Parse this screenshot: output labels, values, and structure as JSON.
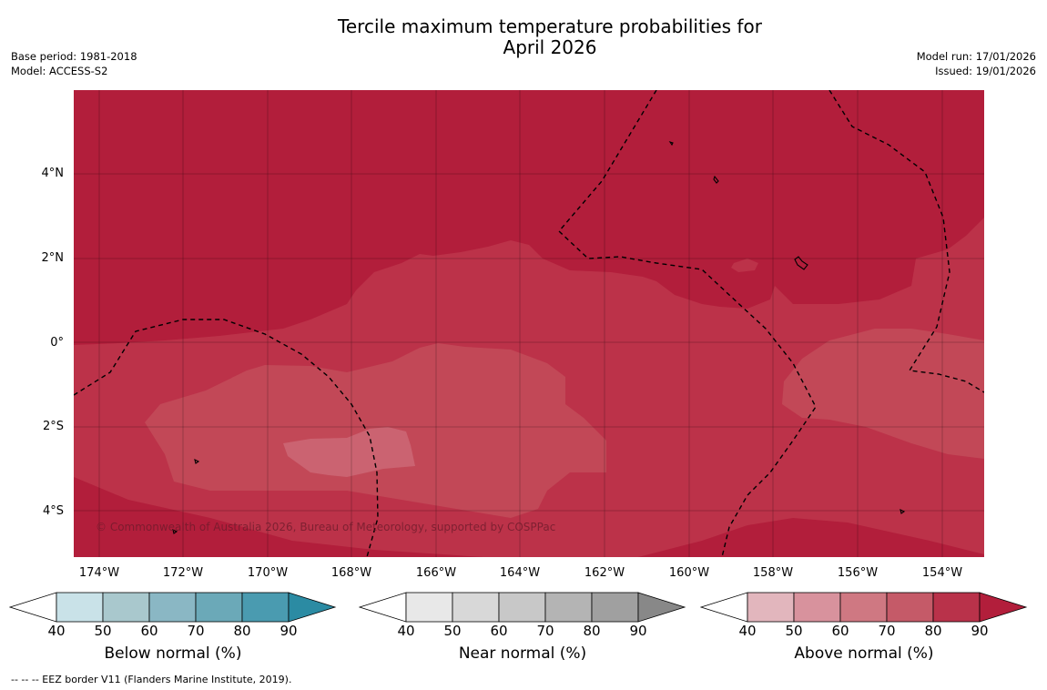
{
  "title_line1": "Tercile maximum temperature probabilities for",
  "title_line2": "April 2026",
  "base_period": "Base period: 1981-2018",
  "model": "Model: ACCESS-S2",
  "model_run": "Model run: 17/01/2026",
  "issued": "Issued: 19/01/2026",
  "map": {
    "lat_labels": [
      "4°N",
      "2°N",
      "0°",
      "2°S",
      "4°S"
    ],
    "lon_labels": [
      "174°W",
      "172°W",
      "170°W",
      "168°W",
      "166°W",
      "164°W",
      "162°W",
      "160°W",
      "158°W",
      "156°W",
      "154°W"
    ],
    "copyright": "© Commonwealth of Australia 2026, Bureau of Meteorology, supported by COSPPac",
    "region_colors": {
      "above_80_90": "#b21e3b",
      "above_70_80": "#bc3249",
      "above_60_70": "#c24857",
      "above_50_60": "#cb6371"
    }
  },
  "legends": [
    {
      "title": "Below normal (%)",
      "ticks": [
        "40",
        "50",
        "60",
        "70",
        "80",
        "90"
      ],
      "colors": [
        "#c9e2e8",
        "#a9c8cd",
        "#8ab7c4",
        "#6ba9b8",
        "#4a9bb0",
        "#2b8ba3"
      ]
    },
    {
      "title": "Near normal (%)",
      "ticks": [
        "40",
        "50",
        "60",
        "70",
        "80",
        "90"
      ],
      "colors": [
        "#e8e8e8",
        "#d8d8d8",
        "#c8c8c8",
        "#b4b4b4",
        "#a0a0a0",
        "#888888"
      ]
    },
    {
      "title": "Above normal (%)",
      "ticks": [
        "40",
        "50",
        "60",
        "70",
        "80",
        "90"
      ],
      "colors": [
        "#e2b6bd",
        "#d8929d",
        "#cf7882",
        "#c55a68",
        "#b9324a",
        "#b21e3b"
      ]
    }
  ],
  "footnote": "--  --  -- EEZ border V11 (Flanders Marine Institute, 2019)."
}
